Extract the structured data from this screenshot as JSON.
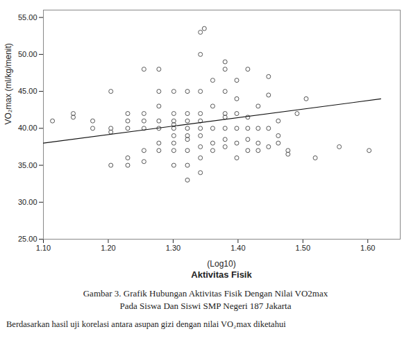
{
  "chart_data": {
    "type": "scatter",
    "ylabel": "VO₂max (ml/kg/menit)",
    "xlabel": [
      "(Log10)",
      "Aktivitas Fisik"
    ],
    "caption": [
      "Gambar 3. Grafik Hubungan Aktivitas Fisik Dengan Nilai VO2max",
      "Pada Siswa Dan Siswi SMP Negeri 187 Jakarta"
    ],
    "footer": "Berdasarkan hasil uji korelasi antara asupan gizi dengan nilai VO₂max diketahui",
    "series": [
      {
        "type": "scatter",
        "marker": "circle",
        "color": "#555555",
        "x": [
          1.114,
          1.146,
          1.146,
          1.176,
          1.176,
          1.204,
          1.204,
          1.204,
          1.204,
          1.23,
          1.23,
          1.23,
          1.23,
          1.23,
          1.255,
          1.255,
          1.255,
          1.255,
          1.255,
          1.255,
          1.278,
          1.278,
          1.278,
          1.278,
          1.278,
          1.278,
          1.278,
          1.301,
          1.301,
          1.301,
          1.301,
          1.301,
          1.301,
          1.301,
          1.301,
          1.301,
          1.322,
          1.322,
          1.322,
          1.322,
          1.322,
          1.322,
          1.322,
          1.322,
          1.322,
          1.342,
          1.342,
          1.342,
          1.342,
          1.342,
          1.342,
          1.342,
          1.342,
          1.342,
          1.361,
          1.361,
          1.361,
          1.361,
          1.361,
          1.38,
          1.38,
          1.38,
          1.38,
          1.38,
          1.38,
          1.38,
          1.398,
          1.398,
          1.398,
          1.398,
          1.398,
          1.415,
          1.415,
          1.415,
          1.415,
          1.415,
          1.431,
          1.431,
          1.431,
          1.431,
          1.447,
          1.447,
          1.447,
          1.462,
          1.462,
          1.462,
          1.477,
          1.477,
          1.491,
          1.505,
          1.519,
          1.556,
          1.602,
          1.342,
          1.348,
          1.38,
          1.447,
          1.398
        ],
        "values": [
          41.0,
          42.0,
          41.5,
          40.0,
          41.0,
          35.0,
          39.5,
          40.0,
          45.0,
          35.0,
          36.0,
          40.0,
          41.0,
          42.0,
          35.5,
          37.0,
          40.0,
          41.0,
          42.0,
          48.0,
          37.0,
          38.0,
          40.0,
          41.0,
          43.0,
          45.0,
          48.0,
          35.0,
          37.0,
          38.0,
          39.0,
          40.0,
          40.5,
          41.0,
          42.0,
          45.0,
          33.0,
          35.0,
          37.0,
          38.5,
          39.0,
          40.0,
          41.0,
          42.0,
          45.0,
          34.0,
          36.0,
          37.5,
          39.0,
          40.0,
          41.0,
          42.0,
          45.0,
          50.0,
          37.0,
          38.0,
          40.0,
          43.0,
          46.5,
          37.5,
          38.5,
          40.0,
          41.5,
          42.0,
          45.0,
          48.0,
          36.0,
          38.0,
          40.0,
          42.0,
          44.0,
          37.0,
          38.5,
          40.0,
          41.5,
          48.0,
          37.0,
          38.0,
          40.0,
          43.0,
          37.5,
          40.0,
          44.5,
          38.0,
          39.0,
          41.0,
          36.5,
          37.0,
          42.0,
          44.0,
          36.0,
          37.5,
          37.0,
          53.0,
          53.5,
          49.0,
          47.0,
          46.5
        ]
      },
      {
        "type": "line",
        "line_style": "solid",
        "color": "#111111",
        "x": [
          1.1,
          1.62
        ],
        "values": [
          38.0,
          43.98
        ]
      }
    ],
    "xlim": [
      1.1,
      1.65
    ],
    "ylim": [
      25.0,
      56.0
    ],
    "xticks": [
      {
        "value": 1.1,
        "label": "1.10"
      },
      {
        "value": 1.2,
        "label": "1.20"
      },
      {
        "value": 1.3,
        "label": "1.30"
      },
      {
        "value": 1.4,
        "label": "1.40"
      },
      {
        "value": 1.5,
        "label": "1.50"
      },
      {
        "value": 1.6,
        "label": "1.60"
      }
    ],
    "yticks": [
      {
        "value": 25.0,
        "label": "25.00"
      },
      {
        "value": 30.0,
        "label": "30.00"
      },
      {
        "value": 35.0,
        "label": "35.00"
      },
      {
        "value": 40.0,
        "label": "40.00"
      },
      {
        "value": 45.0,
        "label": "45.00"
      },
      {
        "value": 50.0,
        "label": "50.00"
      },
      {
        "value": 55.0,
        "label": "55.00"
      }
    ],
    "grid": false
  }
}
